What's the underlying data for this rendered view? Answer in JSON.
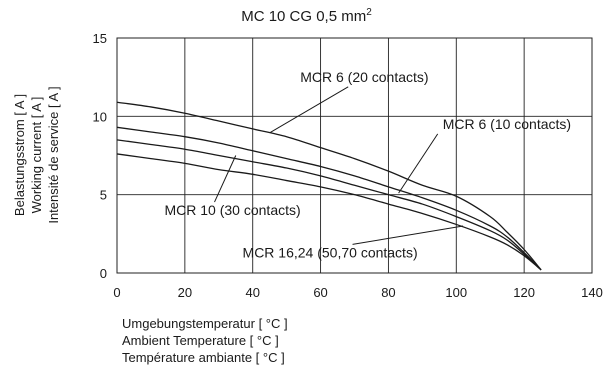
{
  "chart_data": {
    "type": "line",
    "title_main": "MC 10 CG   0,5 mm",
    "title_sup": "2",
    "xlabel_lines": [
      "Umgebungstemperatur [ °C ]",
      "Ambient Temperature [ °C ]",
      "Température ambiante [ °C ]"
    ],
    "ylabel_lines": [
      "Belastungsstrom [ A ]",
      "Working current [ A ]",
      "Intensité de service [ A ]"
    ],
    "xlim": [
      0,
      140
    ],
    "ylim": [
      0,
      15
    ],
    "xticks": [
      "0",
      "20",
      "40",
      "60",
      "80",
      "100",
      "120",
      "140"
    ],
    "yticks": [
      "0",
      "5",
      "10",
      "15"
    ],
    "grid": true,
    "series": [
      {
        "name": "MCR 6 (20 contacts)",
        "points": [
          [
            0,
            10.9
          ],
          [
            10,
            10.6
          ],
          [
            20,
            10.2
          ],
          [
            30,
            9.7
          ],
          [
            40,
            9.2
          ],
          [
            50,
            8.7
          ],
          [
            60,
            8.0
          ],
          [
            70,
            7.3
          ],
          [
            80,
            6.5
          ],
          [
            90,
            5.6
          ],
          [
            100,
            4.9
          ],
          [
            110,
            3.6
          ],
          [
            115,
            2.6
          ],
          [
            120,
            1.5
          ],
          [
            125,
            0.2
          ]
        ]
      },
      {
        "name": "MCR 6 (10 contacts)",
        "points": [
          [
            0,
            9.3
          ],
          [
            10,
            9.0
          ],
          [
            20,
            8.7
          ],
          [
            30,
            8.3
          ],
          [
            40,
            7.8
          ],
          [
            50,
            7.3
          ],
          [
            60,
            6.8
          ],
          [
            70,
            6.2
          ],
          [
            80,
            5.5
          ],
          [
            90,
            4.8
          ],
          [
            100,
            4.0
          ],
          [
            110,
            3.0
          ],
          [
            115,
            2.3
          ],
          [
            120,
            1.3
          ],
          [
            125,
            0.2
          ]
        ]
      },
      {
        "name": "MCR 10 (30 contacts)",
        "points": [
          [
            0,
            8.5
          ],
          [
            10,
            8.2
          ],
          [
            20,
            7.9
          ],
          [
            30,
            7.5
          ],
          [
            40,
            7.1
          ],
          [
            50,
            6.7
          ],
          [
            60,
            6.2
          ],
          [
            70,
            5.6
          ],
          [
            80,
            5.0
          ],
          [
            90,
            4.4
          ],
          [
            100,
            3.6
          ],
          [
            110,
            2.7
          ],
          [
            115,
            2.1
          ],
          [
            120,
            1.2
          ],
          [
            125,
            0.2
          ]
        ]
      },
      {
        "name": "MCR 16,24 (50,70 contacts)",
        "points": [
          [
            0,
            7.6
          ],
          [
            10,
            7.3
          ],
          [
            20,
            7.0
          ],
          [
            30,
            6.6
          ],
          [
            40,
            6.3
          ],
          [
            50,
            5.9
          ],
          [
            60,
            5.5
          ],
          [
            70,
            5.0
          ],
          [
            80,
            4.4
          ],
          [
            90,
            3.8
          ],
          [
            100,
            3.1
          ],
          [
            110,
            2.3
          ],
          [
            115,
            1.8
          ],
          [
            120,
            1.1
          ],
          [
            125,
            0.2
          ]
        ]
      }
    ],
    "annotations": [
      {
        "text": "MCR 6 (20 contacts)",
        "x": 54,
        "y": 12.2,
        "target": [
          45,
          8.95
        ]
      },
      {
        "text": "MCR 6 (10 contacts)",
        "x": 96,
        "y": 9.2,
        "target": [
          83,
          5.1
        ]
      },
      {
        "text": "MCR 10 (30 contacts)",
        "x": 14,
        "y": 3.7,
        "target": [
          35,
          7.5
        ]
      },
      {
        "text": "MCR 16,24 (50,70 contacts)",
        "x": 37,
        "y": 1.0,
        "target": [
          102,
          3.0
        ]
      }
    ],
    "line_color": "#1a1a1a",
    "grid_color": "#222222"
  }
}
